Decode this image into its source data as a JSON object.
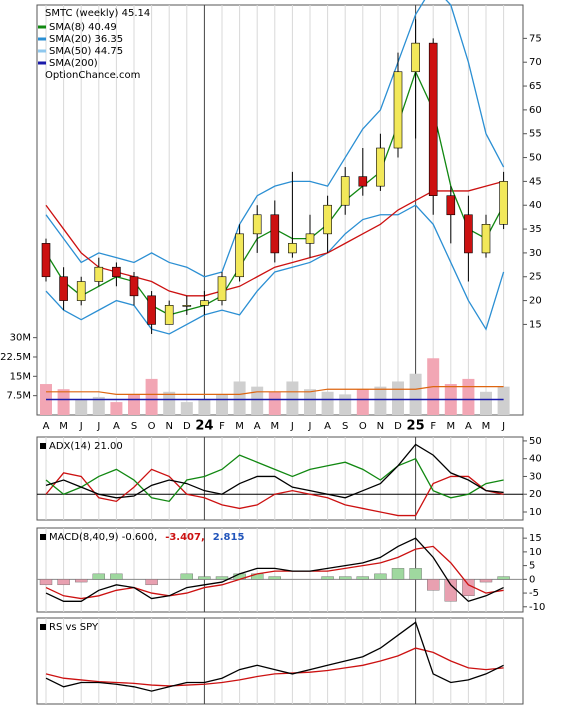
{
  "chart_data": [
    {
      "type": "candlestick",
      "title": "SMTC (weekly) 45.14",
      "watermark": "OptionChance.com",
      "categories": [
        "A",
        "M",
        "J",
        "J",
        "A",
        "S",
        "O",
        "N",
        "D",
        "24",
        "F",
        "M",
        "A",
        "M",
        "J",
        "J",
        "A",
        "S",
        "O",
        "N",
        "D",
        "25",
        "F",
        "M",
        "A",
        "M",
        "J"
      ],
      "open": [
        32,
        25,
        20,
        24,
        27,
        25,
        21,
        15,
        19,
        19,
        20,
        25,
        34,
        38,
        30,
        32,
        34,
        40,
        46,
        44,
        52,
        68,
        74,
        42,
        38,
        30,
        36
      ],
      "high": [
        33,
        27,
        25,
        29,
        28,
        26,
        22,
        20,
        21,
        22,
        26,
        36,
        40,
        41,
        47,
        38,
        42,
        48,
        52,
        55,
        72,
        79,
        75,
        44,
        42,
        38,
        47
      ],
      "low": [
        24,
        18,
        19,
        23,
        23,
        19,
        13,
        15,
        17,
        17,
        19,
        24,
        30,
        28,
        29,
        29,
        30,
        38,
        42,
        43,
        50,
        54,
        38,
        32,
        24,
        29,
        35
      ],
      "close": [
        25,
        20,
        24,
        27,
        25,
        21,
        15,
        19,
        19,
        20,
        25,
        34,
        38,
        30,
        32,
        34,
        40,
        46,
        44,
        52,
        68,
        74,
        42,
        38,
        30,
        36,
        45
      ],
      "up_color": "#f2e85a",
      "down_color": "#cc1111",
      "ylim": [
        -4,
        82
      ],
      "yticks": [
        15,
        20,
        25,
        30,
        35,
        40,
        45,
        50,
        55,
        60,
        65,
        70,
        75
      ],
      "series": [
        {
          "name": "SMA(8) 40.49",
          "color": "#118811",
          "values": [
            30,
            24,
            21,
            23,
            25,
            24,
            19,
            17,
            18,
            19,
            21,
            27,
            33,
            35,
            33,
            33,
            36,
            41,
            44,
            47,
            57,
            68,
            60,
            44,
            35,
            33,
            40
          ]
        },
        {
          "name": "SMA(20) 36.35",
          "color": "#2b8fd3"
        },
        {
          "name": "SMA(50) 44.75",
          "color": "#8fc8ee"
        },
        {
          "name": "SMA(200)",
          "color": "#1a1aaa"
        }
      ],
      "bands": {
        "color": "#2b8fd3",
        "upper": [
          38,
          33,
          28,
          30,
          29,
          28,
          30,
          28,
          27,
          25,
          26,
          36,
          42,
          44,
          45,
          45,
          44,
          50,
          56,
          60,
          70,
          80,
          86,
          82,
          70,
          55,
          48
        ],
        "lower": [
          22,
          18,
          16,
          18,
          20,
          19,
          14,
          13,
          15,
          17,
          18,
          17,
          22,
          26,
          27,
          28,
          30,
          34,
          37,
          38,
          38,
          40,
          36,
          28,
          20,
          14,
          26
        ]
      },
      "trend": {
        "color": "#cc1111",
        "values": [
          40,
          35,
          30,
          27,
          26,
          25,
          24,
          22,
          21,
          21,
          22,
          23,
          25,
          27,
          28,
          29,
          30,
          32,
          34,
          36,
          39,
          41,
          43,
          43,
          43,
          44,
          45
        ]
      },
      "volume": {
        "ylim": [
          0,
          159
        ],
        "up_color": "#cfcfcf",
        "down_color": "#f2a6b4",
        "avg_color": "#dd6611",
        "base_color": "#1a1aaa",
        "yticks": [
          {
            "value": 7.5,
            "label": "7.5M"
          },
          {
            "value": 15,
            "label": "15M"
          },
          {
            "value": 22.5,
            "label": "22.5M"
          },
          {
            "value": 30,
            "label": "30M"
          }
        ],
        "values": [
          12,
          10,
          6,
          7,
          5,
          8,
          14,
          9,
          5,
          6,
          8,
          13,
          11,
          9,
          13,
          10,
          9,
          8,
          10,
          11,
          13,
          16,
          22,
          12,
          14,
          9,
          11
        ],
        "avg": [
          9,
          9,
          9,
          9,
          8,
          8,
          8,
          8,
          8,
          8,
          8,
          8,
          9,
          9,
          9,
          9,
          10,
          10,
          10,
          10,
          10,
          10,
          11,
          11,
          11,
          11,
          11
        ],
        "base": [
          6,
          6,
          6,
          6,
          6,
          6,
          6,
          6,
          6,
          6,
          6,
          6,
          6,
          6,
          6,
          6,
          6,
          6,
          6,
          6,
          6,
          6,
          6,
          6,
          6,
          6,
          6
        ]
      }
    },
    {
      "type": "line",
      "title": "ADX(14) 21.00",
      "ylim": [
        5.5,
        52.2
      ],
      "yticks": [
        10,
        20,
        30,
        40,
        50
      ],
      "reference": 20,
      "series": [
        {
          "color": "#000000",
          "values": [
            25,
            28,
            24,
            20,
            18,
            19,
            25,
            28,
            26,
            22,
            20,
            26,
            30,
            30,
            24,
            22,
            20,
            18,
            22,
            26,
            36,
            48,
            42,
            32,
            28,
            22,
            21
          ]
        },
        {
          "color": "#118811",
          "values": [
            28,
            20,
            24,
            30,
            34,
            28,
            18,
            16,
            28,
            30,
            34,
            42,
            38,
            34,
            30,
            34,
            36,
            38,
            34,
            28,
            36,
            40,
            22,
            18,
            20,
            26,
            28
          ]
        },
        {
          "color": "#cc1111",
          "values": [
            20,
            32,
            30,
            18,
            16,
            24,
            34,
            30,
            20,
            18,
            14,
            12,
            14,
            20,
            22,
            20,
            18,
            14,
            12,
            10,
            8,
            8,
            26,
            30,
            30,
            22,
            20
          ]
        }
      ]
    },
    {
      "type": "macd",
      "title": "MACD(8,40,9) -0.600,",
      "macd_label": "-3.407,",
      "signal_label": "2.815",
      "ylim": [
        -11.9,
        18.7
      ],
      "yticks": [
        -10,
        -5,
        0,
        5,
        10,
        15
      ],
      "macd": {
        "color": "#000000",
        "values": [
          -5,
          -8,
          -8,
          -4,
          -2,
          -3,
          -7,
          -6,
          -3,
          -2,
          -1,
          2,
          4,
          4,
          3,
          3,
          4,
          5,
          6,
          8,
          12,
          15,
          8,
          -2,
          -8,
          -6,
          -3
        ]
      },
      "signal": {
        "color": "#cc1111",
        "values": [
          -3,
          -6,
          -7,
          -6,
          -4,
          -3,
          -5,
          -6,
          -5,
          -3,
          -2,
          0,
          2,
          3,
          3,
          3,
          3,
          4,
          5,
          6,
          8,
          11,
          12,
          6,
          -2,
          -5,
          -4
        ]
      },
      "histogram": {
        "up_color": "#9fd89f",
        "down_color": "#e8a0b0",
        "values": [
          -2,
          -2,
          -1,
          2,
          2,
          0,
          -2,
          0,
          2,
          1,
          1,
          2,
          2,
          1,
          0,
          0,
          1,
          1,
          1,
          2,
          4,
          4,
          -4,
          -8,
          -6,
          -1,
          1
        ]
      }
    },
    {
      "type": "line",
      "title": "RS vs SPY",
      "ylim": [
        0,
        10
      ],
      "series": [
        {
          "color": "#000000",
          "values": [
            3,
            2,
            2.5,
            2.5,
            2.3,
            2,
            1.5,
            2,
            2.5,
            2.5,
            3,
            4,
            4.5,
            4,
            3.5,
            4,
            4.5,
            5,
            5.5,
            6.5,
            8,
            9.5,
            3.5,
            2.5,
            2.8,
            3.5,
            4.5
          ]
        },
        {
          "color": "#cc1111",
          "values": [
            3.5,
            3,
            2.8,
            2.6,
            2.5,
            2.4,
            2.2,
            2.1,
            2.2,
            2.3,
            2.5,
            2.8,
            3.2,
            3.5,
            3.6,
            3.7,
            3.9,
            4.2,
            4.5,
            5,
            5.6,
            6.5,
            6,
            5,
            4.2,
            4,
            4.2
          ]
        }
      ]
    }
  ]
}
